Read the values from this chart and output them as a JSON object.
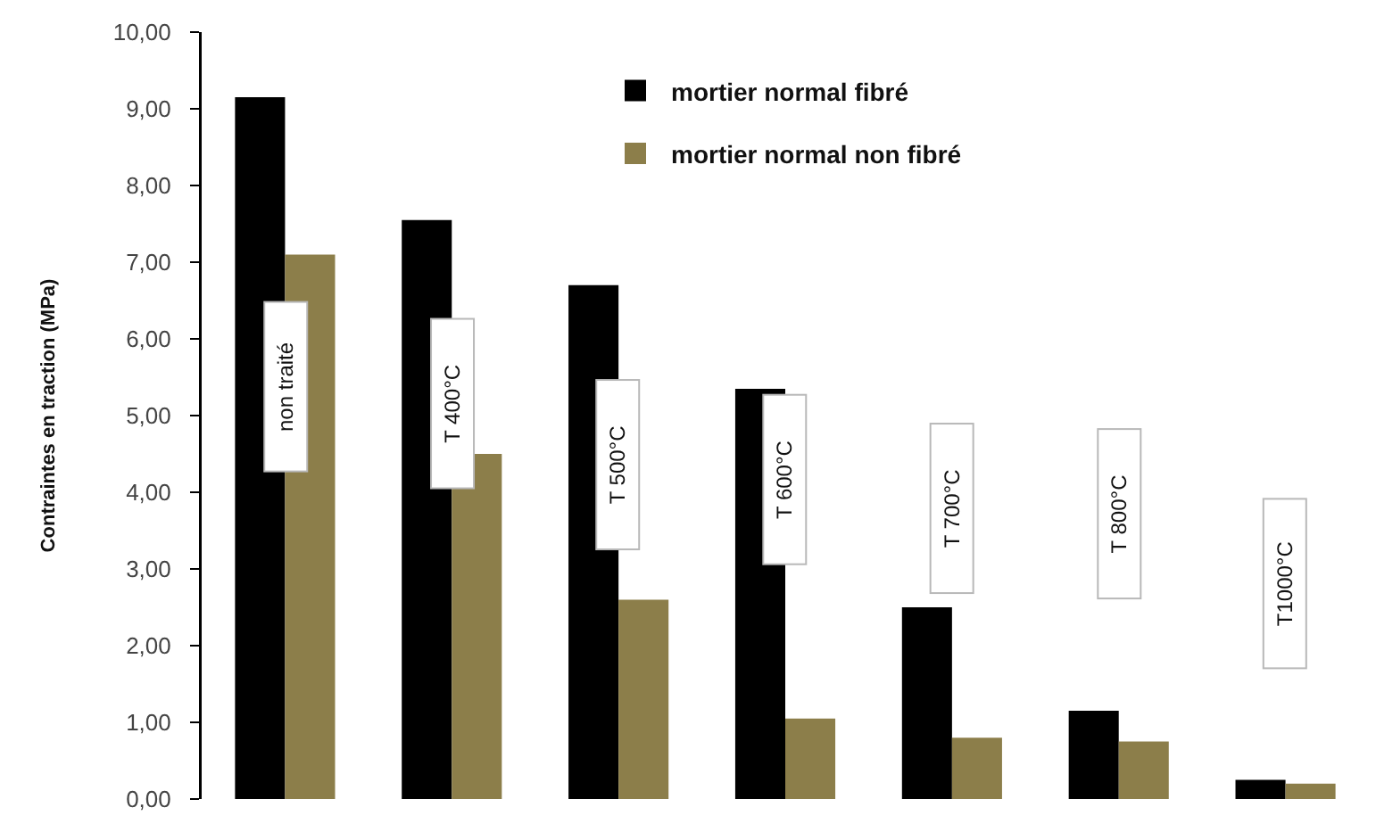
{
  "chart_data": {
    "type": "bar",
    "ylabel": "Contraintes en traction (MPa)",
    "categories": [
      "non traité",
      "T 400°C",
      "T 500°C",
      "T 600°C",
      "T 700°C",
      "T 800°C",
      "T1000°C"
    ],
    "series": [
      {
        "name": "mortier normal fibré",
        "color": "#000000",
        "values": [
          9.15,
          7.55,
          6.7,
          5.35,
          2.5,
          1.15,
          0.25
        ]
      },
      {
        "name": "mortier normal non fibré",
        "color": "#8c7e4a",
        "values": [
          7.1,
          4.5,
          2.6,
          1.05,
          0.8,
          0.75,
          0.2
        ]
      }
    ],
    "ylim": [
      0,
      10
    ],
    "yticks": [
      {
        "value": 0,
        "label": "0,00"
      },
      {
        "value": 1,
        "label": "1,00"
      },
      {
        "value": 2,
        "label": "2,00"
      },
      {
        "value": 3,
        "label": "3,00"
      },
      {
        "value": 4,
        "label": "4,00"
      },
      {
        "value": 5,
        "label": "5,00"
      },
      {
        "value": 6,
        "label": "6,00"
      },
      {
        "value": 7,
        "label": "7,00"
      },
      {
        "value": 8,
        "label": "8,00"
      },
      {
        "value": 9,
        "label": "9,00"
      },
      {
        "value": 10,
        "label": "10,00"
      }
    ],
    "grid": false,
    "legend": "top",
    "tick_labels": "y"
  }
}
